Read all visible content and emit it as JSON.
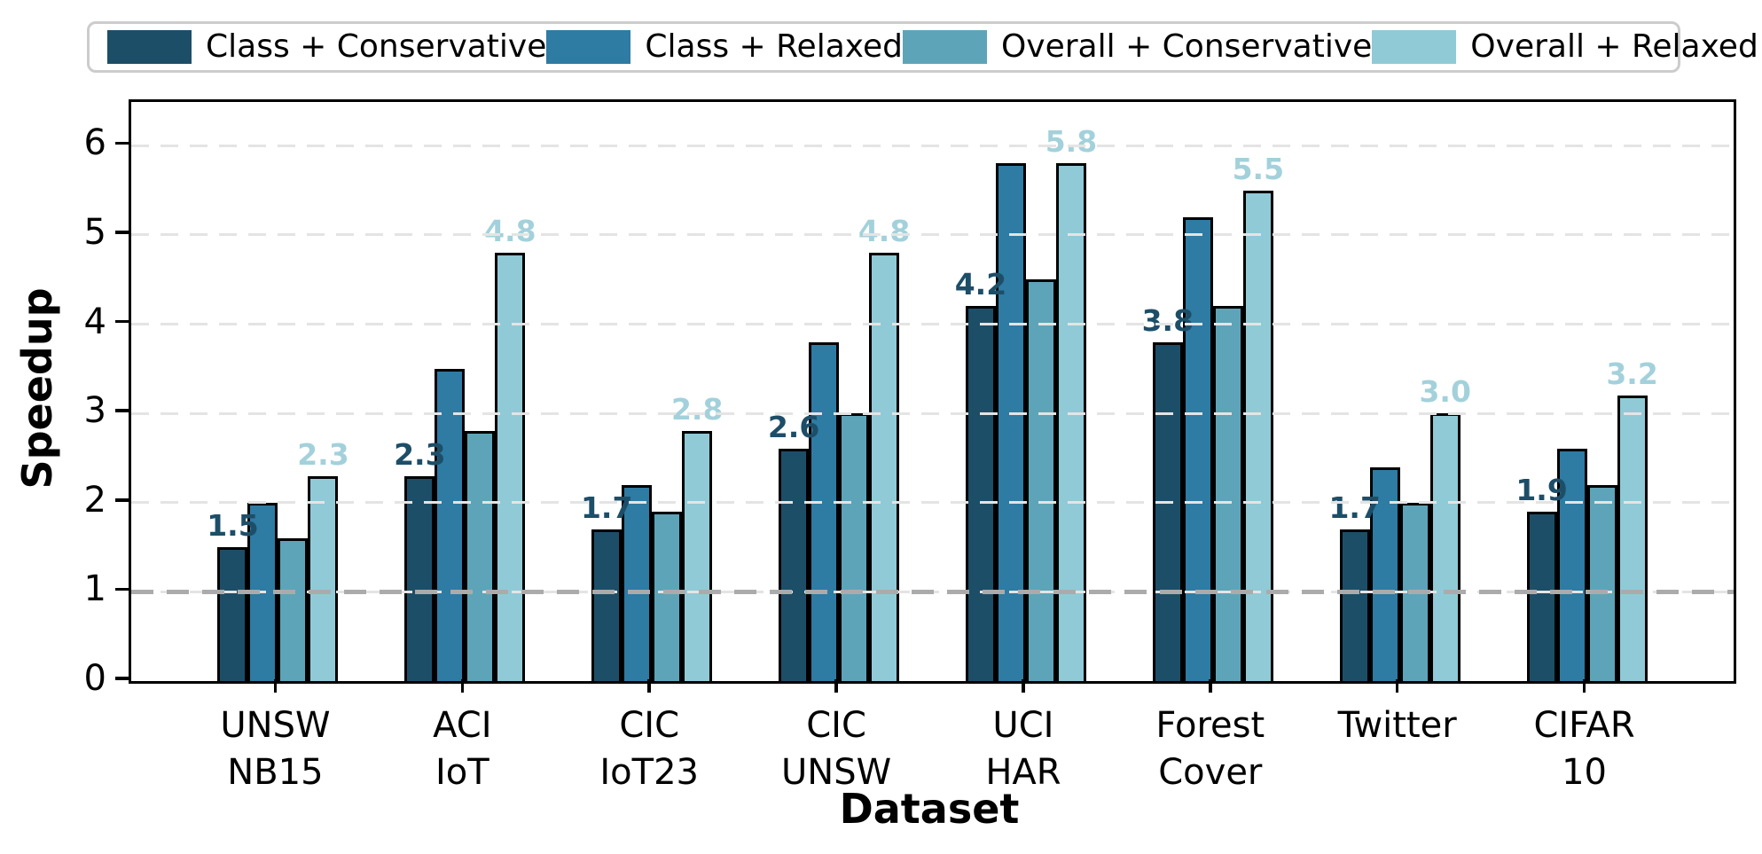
{
  "chart_data": {
    "type": "bar",
    "title": "",
    "xlabel": "Dataset",
    "ylabel": "Speedup",
    "ylim": [
      0,
      6.49
    ],
    "yticks": [
      0,
      1,
      2,
      3,
      4,
      5,
      6
    ],
    "reference_line_y": 1,
    "grid": "horizontal-dashed",
    "legend_position": "top",
    "categories": [
      "UNSW\nNB15",
      "ACI\nIoT",
      "CIC\nIoT23",
      "CIC\nUNSW",
      "UCI\nHAR",
      "Forest\nCover",
      "Twitter",
      "CIFAR\n10"
    ],
    "series": [
      {
        "name": "Class + Conservative",
        "color": "#1d4e68",
        "values": [
          1.5,
          2.3,
          1.7,
          2.6,
          4.2,
          3.8,
          1.7,
          1.9
        ]
      },
      {
        "name": "Class + Relaxed",
        "color": "#2e7ba3",
        "values": [
          2.0,
          3.5,
          2.2,
          3.8,
          5.8,
          5.2,
          2.4,
          2.6
        ]
      },
      {
        "name": "Overall + Conservative",
        "color": "#5da4b8",
        "values": [
          1.6,
          2.8,
          1.9,
          3.0,
          4.5,
          4.2,
          2.0,
          2.2
        ]
      },
      {
        "name": "Overall + Relaxed",
        "color": "#90cad6",
        "values": [
          2.3,
          4.8,
          2.8,
          4.8,
          5.8,
          5.5,
          3.0,
          3.2
        ]
      }
    ],
    "bar_value_labels": {
      "first_series": [
        "1.5",
        "2.3",
        "1.7",
        "2.6",
        "4.2",
        "3.8",
        "1.7",
        "1.9"
      ],
      "last_series": [
        "2.3",
        "4.8",
        "2.8",
        "4.8",
        "5.8",
        "5.5",
        "3.0",
        "3.2"
      ],
      "first_series_color": "#1d4e68",
      "last_series_color": "#a3d1db"
    }
  },
  "colors": {
    "grid": "#e4e4e4",
    "reference_line": "#ababab",
    "axis": "#000000",
    "legend_border": "#cccccc",
    "background": "#ffffff"
  }
}
